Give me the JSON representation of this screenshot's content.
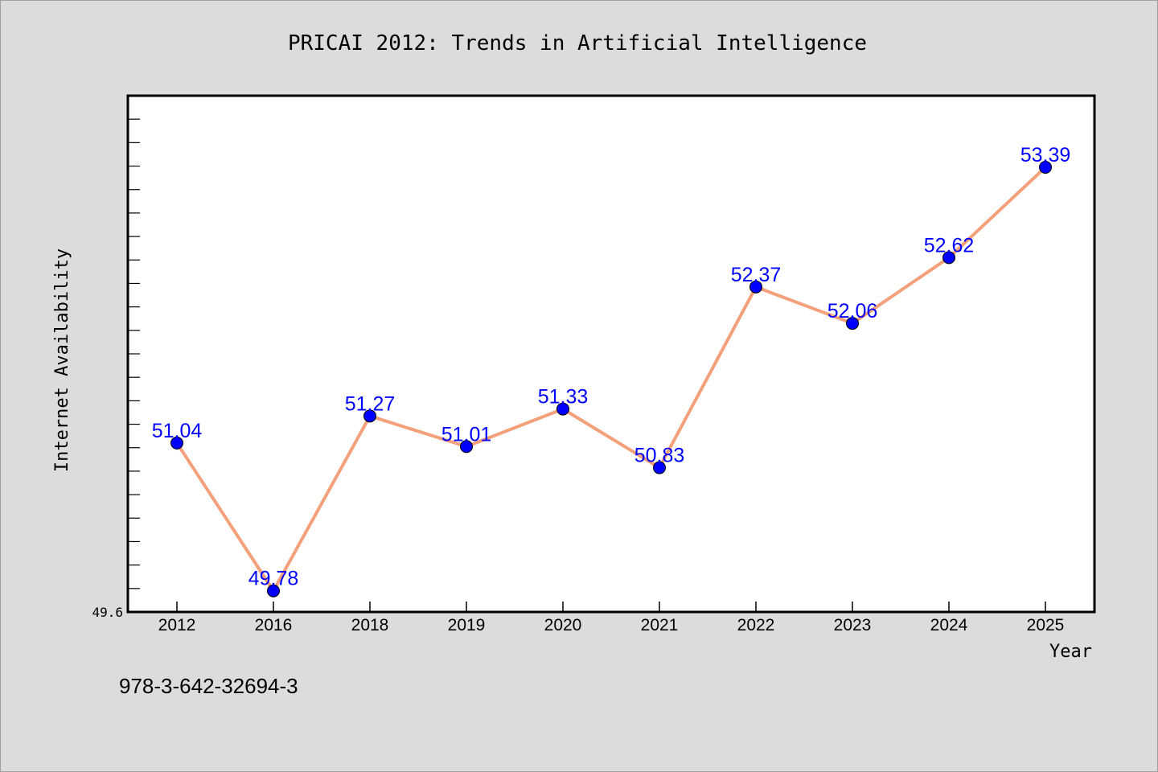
{
  "chart_data": {
    "type": "line",
    "title": "PRICAI 2012: Trends in Artificial Intelligence",
    "xlabel": "Year",
    "ylabel": "Internet Availability",
    "categories": [
      "2012",
      "2016",
      "2018",
      "2019",
      "2020",
      "2021",
      "2022",
      "2023",
      "2024",
      "2025"
    ],
    "values": [
      51.04,
      49.78,
      51.27,
      51.01,
      51.33,
      50.83,
      52.37,
      52.06,
      52.62,
      53.39
    ],
    "data_labels": [
      "51.04",
      "49.78",
      "51.27",
      "51.01",
      "51.33",
      "50.83",
      "52.37",
      "52.06",
      "52.62",
      "53.39"
    ],
    "ylim": [
      49.6,
      54.0
    ],
    "yticks_labeled": [
      "49.6"
    ],
    "grid": false,
    "legend": "none",
    "colors": {
      "line": "#f4a07a",
      "marker": "#0000ff",
      "label": "#0000ff",
      "plot_bg": "#ffffff",
      "page_bg": "#dcdcdc"
    }
  },
  "footer": {
    "isbn": "978-3-642-32694-3"
  }
}
